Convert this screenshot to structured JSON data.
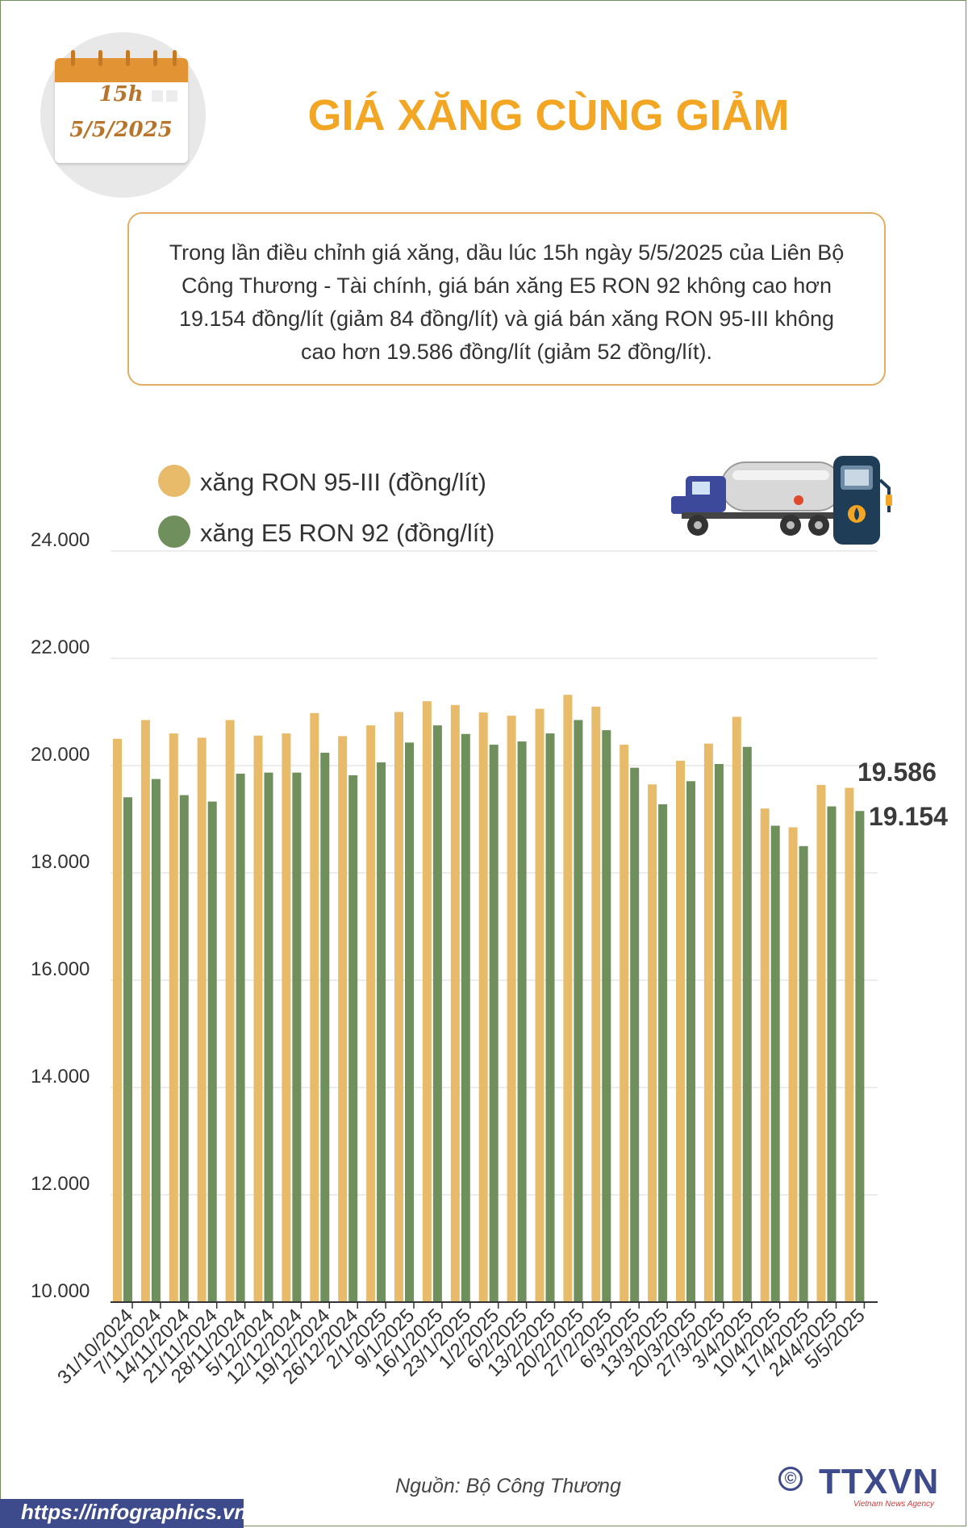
{
  "badge": {
    "time": "15h",
    "date": "5/5/2025"
  },
  "title": "GIÁ XĂNG CÙNG GIẢM",
  "description": "Trong lần điều chỉnh giá xăng, dầu lúc 15h ngày 5/5/2025 của Liên Bộ Công Thương - Tài chính, giá bán xăng E5 RON 92 không cao hơn 19.154 đồng/lít (giảm 84 đồng/lít) và giá bán xăng RON 95-III không cao hơn 19.586 đồng/lít (giảm 52 đồng/lít).",
  "colors": {
    "ron95": "#e8bb6b",
    "e5": "#6f8f5c",
    "title": "#f2a623",
    "brand": "#3d4a8c"
  },
  "chart_data": {
    "type": "bar",
    "categories": [
      "31/10/2024",
      "7/11/2024",
      "14/11/2024",
      "21/11/2024",
      "28/11/2024",
      "5/12/2024",
      "12/12/2024",
      "19/12/2024",
      "26/12/2024",
      "2/1/2025",
      "9/1/2025",
      "16/1/2025",
      "23/1/2025",
      "1/2/2025",
      "6/2/2025",
      "13/2/2025",
      "20/2/2025",
      "27/2/2025",
      "6/3/2025",
      "13/3/2025",
      "20/3/2025",
      "27/3/2025",
      "3/4/2025",
      "10/4/2025",
      "17/4/2025",
      "24/4/2025",
      "5/5/2025"
    ],
    "series": [
      {
        "name": "xăng RON 95-III (đồng/lít)",
        "color": "#e8bb6b",
        "values": [
          20500,
          20850,
          20600,
          20520,
          20850,
          20560,
          20600,
          20980,
          20550,
          20750,
          21000,
          21200,
          21130,
          20990,
          20930,
          21060,
          21320,
          21100,
          20390,
          19650,
          20090,
          20410,
          20910,
          19200,
          18850,
          19640,
          19586
        ]
      },
      {
        "name": "xăng E5 RON 92 (đồng/lít)",
        "color": "#6f8f5c",
        "values": [
          19410,
          19750,
          19450,
          19330,
          19850,
          19870,
          19870,
          20240,
          19820,
          20060,
          20430,
          20750,
          20590,
          20390,
          20450,
          20600,
          20850,
          20660,
          19960,
          19280,
          19710,
          20030,
          20350,
          18880,
          18500,
          19240,
          19154
        ]
      }
    ],
    "ylim": [
      10000,
      24000
    ],
    "yticks": [
      "10.000",
      "12.000",
      "14.000",
      "16.000",
      "18.000",
      "20.000",
      "22.000",
      "24.000"
    ],
    "end_labels": [
      "19.586",
      "19.154"
    ],
    "grid": true,
    "legend": "top-left"
  },
  "source": "Nguồn: Bộ Công Thương",
  "footer": {
    "url": "https://infographics.vn",
    "logo": "TTXVN",
    "logo_sub": "Vietnam News Agency",
    "copyright": "©"
  }
}
